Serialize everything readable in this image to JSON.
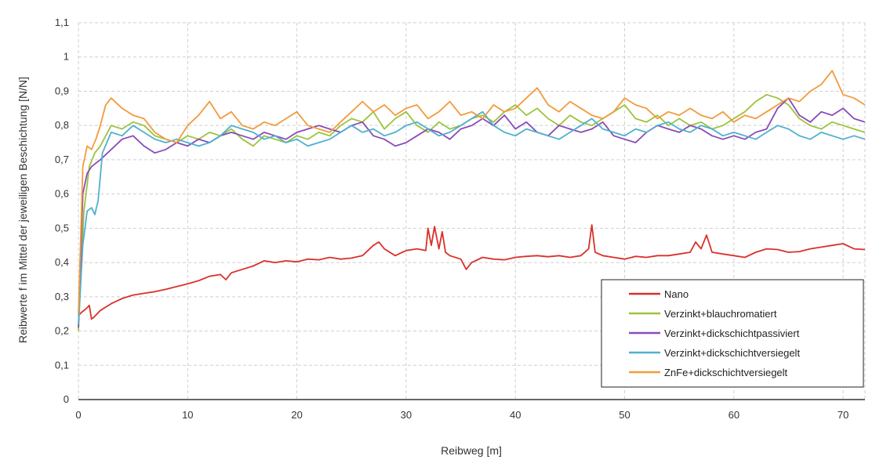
{
  "chart_data": {
    "type": "line",
    "xlabel": "Reibweg [m]",
    "ylabel": "Reibwerte f im Mittel der jeweiligen Beschichtung [N/N]",
    "xlim": [
      0,
      72
    ],
    "ylim": [
      0,
      1.1
    ],
    "x_ticks": [
      "0",
      "10",
      "20",
      "30",
      "40",
      "50",
      "60",
      "70"
    ],
    "x_tick_values": [
      0,
      10,
      20,
      30,
      40,
      50,
      60,
      70
    ],
    "y_ticks": [
      "0",
      "0,1",
      "0,2",
      "0,3",
      "0,4",
      "0,5",
      "0,6",
      "0,7",
      "0,8",
      "0,9",
      "1",
      "1,1"
    ],
    "y_tick_values": [
      0,
      0.1,
      0.2,
      0.3,
      0.4,
      0.5,
      0.6,
      0.7,
      0.8,
      0.9,
      1.0,
      1.1
    ],
    "grid": true,
    "legend_position": "bottom-right",
    "series": [
      {
        "name": "Nano",
        "color": "#d9312b",
        "x": [
          0,
          0.3,
          0.7,
          1.0,
          1.2,
          1.4,
          2,
          3,
          4,
          5,
          6,
          7,
          8,
          9,
          10,
          11,
          12,
          13,
          13.5,
          14,
          15,
          16,
          17,
          18,
          19,
          20,
          21,
          22,
          23,
          24,
          25,
          26,
          27,
          27.5,
          28,
          29,
          30,
          31,
          31.8,
          32,
          32.3,
          32.6,
          33,
          33.3,
          33.6,
          34,
          35,
          35.5,
          36,
          37,
          38,
          39,
          40,
          41,
          42,
          43,
          44,
          45,
          46,
          46.7,
          47,
          47.3,
          48,
          49,
          50,
          51,
          52,
          53,
          54,
          55,
          56,
          56.5,
          57,
          57.5,
          58,
          59,
          60,
          61,
          62,
          63,
          64,
          65,
          66,
          67,
          68,
          69,
          70,
          71,
          72
        ],
        "values": [
          0.245,
          0.255,
          0.265,
          0.275,
          0.235,
          0.24,
          0.26,
          0.28,
          0.295,
          0.305,
          0.31,
          0.315,
          0.322,
          0.33,
          0.338,
          0.347,
          0.36,
          0.365,
          0.35,
          0.37,
          0.38,
          0.39,
          0.405,
          0.4,
          0.405,
          0.402,
          0.41,
          0.408,
          0.415,
          0.41,
          0.413,
          0.42,
          0.45,
          0.46,
          0.44,
          0.42,
          0.435,
          0.44,
          0.435,
          0.5,
          0.45,
          0.505,
          0.44,
          0.49,
          0.43,
          0.42,
          0.41,
          0.38,
          0.4,
          0.415,
          0.41,
          0.408,
          0.415,
          0.418,
          0.42,
          0.417,
          0.42,
          0.415,
          0.42,
          0.44,
          0.51,
          0.43,
          0.42,
          0.415,
          0.41,
          0.418,
          0.415,
          0.42,
          0.42,
          0.425,
          0.43,
          0.46,
          0.44,
          0.48,
          0.43,
          0.425,
          0.42,
          0.415,
          0.43,
          0.44,
          0.438,
          0.43,
          0.432,
          0.44,
          0.445,
          0.45,
          0.455,
          0.44,
          0.438
        ]
      },
      {
        "name": "Verzinkt+blauchromatiert",
        "color": "#9bc43c",
        "x": [
          0,
          0.5,
          1,
          1.5,
          2,
          3,
          4,
          5,
          6,
          7,
          8,
          9,
          10,
          11,
          12,
          13,
          14,
          15,
          16,
          17,
          18,
          19,
          20,
          21,
          22,
          23,
          24,
          25,
          26,
          27,
          28,
          29,
          30,
          31,
          32,
          33,
          34,
          35,
          36,
          37,
          38,
          39,
          40,
          41,
          42,
          43,
          44,
          45,
          46,
          47,
          48,
          49,
          50,
          51,
          52,
          53,
          54,
          55,
          56,
          57,
          58,
          59,
          60,
          61,
          62,
          63,
          64,
          65,
          66,
          67,
          68,
          69,
          70,
          71,
          72
        ],
        "values": [
          0.2,
          0.55,
          0.68,
          0.72,
          0.74,
          0.8,
          0.79,
          0.81,
          0.8,
          0.77,
          0.76,
          0.75,
          0.77,
          0.76,
          0.78,
          0.77,
          0.79,
          0.76,
          0.74,
          0.77,
          0.76,
          0.75,
          0.77,
          0.76,
          0.78,
          0.77,
          0.8,
          0.82,
          0.81,
          0.84,
          0.79,
          0.82,
          0.84,
          0.8,
          0.78,
          0.81,
          0.79,
          0.8,
          0.82,
          0.83,
          0.81,
          0.84,
          0.86,
          0.83,
          0.85,
          0.82,
          0.8,
          0.83,
          0.81,
          0.8,
          0.82,
          0.84,
          0.86,
          0.82,
          0.81,
          0.83,
          0.8,
          0.82,
          0.8,
          0.81,
          0.79,
          0.8,
          0.82,
          0.84,
          0.87,
          0.89,
          0.88,
          0.86,
          0.82,
          0.8,
          0.79,
          0.81,
          0.8,
          0.79,
          0.78
        ]
      },
      {
        "name": "Verzinkt+dickschichtpassiviert",
        "color": "#8a4ab8",
        "x": [
          0,
          0.4,
          0.8,
          1.2,
          1.6,
          2,
          3,
          4,
          5,
          6,
          7,
          8,
          9,
          10,
          11,
          12,
          13,
          14,
          15,
          16,
          17,
          18,
          19,
          20,
          21,
          22,
          23,
          24,
          25,
          26,
          27,
          28,
          29,
          30,
          31,
          32,
          33,
          34,
          35,
          36,
          37,
          38,
          39,
          40,
          41,
          42,
          43,
          44,
          45,
          46,
          47,
          48,
          49,
          50,
          51,
          52,
          53,
          54,
          55,
          56,
          57,
          58,
          59,
          60,
          61,
          62,
          63,
          64,
          65,
          66,
          67,
          68,
          69,
          70,
          71,
          72
        ],
        "values": [
          0.21,
          0.6,
          0.66,
          0.68,
          0.69,
          0.7,
          0.73,
          0.76,
          0.77,
          0.74,
          0.72,
          0.73,
          0.75,
          0.74,
          0.76,
          0.75,
          0.77,
          0.78,
          0.77,
          0.76,
          0.78,
          0.77,
          0.76,
          0.78,
          0.79,
          0.8,
          0.79,
          0.78,
          0.8,
          0.81,
          0.77,
          0.76,
          0.74,
          0.75,
          0.77,
          0.79,
          0.78,
          0.76,
          0.79,
          0.8,
          0.82,
          0.8,
          0.83,
          0.79,
          0.81,
          0.78,
          0.77,
          0.8,
          0.79,
          0.78,
          0.79,
          0.81,
          0.77,
          0.76,
          0.75,
          0.78,
          0.8,
          0.79,
          0.78,
          0.8,
          0.79,
          0.77,
          0.76,
          0.77,
          0.76,
          0.78,
          0.79,
          0.85,
          0.88,
          0.83,
          0.81,
          0.84,
          0.83,
          0.85,
          0.82,
          0.81
        ]
      },
      {
        "name": "Verzinkt+dickschichtversiegelt",
        "color": "#4fb0cf",
        "x": [
          0,
          0.4,
          0.8,
          1.2,
          1.5,
          1.8,
          2.2,
          3,
          4,
          5,
          6,
          7,
          8,
          9,
          10,
          11,
          12,
          13,
          14,
          15,
          16,
          17,
          18,
          19,
          20,
          21,
          22,
          23,
          24,
          25,
          26,
          27,
          28,
          29,
          30,
          31,
          32,
          33,
          34,
          35,
          36,
          37,
          38,
          39,
          40,
          41,
          42,
          43,
          44,
          45,
          46,
          47,
          48,
          49,
          50,
          51,
          52,
          53,
          54,
          55,
          56,
          57,
          58,
          59,
          60,
          61,
          62,
          63,
          64,
          65,
          66,
          67,
          68,
          69,
          70,
          71,
          72
        ],
        "values": [
          0.22,
          0.45,
          0.55,
          0.56,
          0.54,
          0.58,
          0.72,
          0.78,
          0.77,
          0.8,
          0.78,
          0.76,
          0.75,
          0.76,
          0.75,
          0.74,
          0.75,
          0.77,
          0.8,
          0.79,
          0.78,
          0.76,
          0.77,
          0.75,
          0.76,
          0.74,
          0.75,
          0.76,
          0.78,
          0.8,
          0.78,
          0.79,
          0.77,
          0.78,
          0.8,
          0.81,
          0.79,
          0.77,
          0.78,
          0.8,
          0.82,
          0.84,
          0.8,
          0.78,
          0.77,
          0.79,
          0.78,
          0.77,
          0.76,
          0.78,
          0.8,
          0.82,
          0.79,
          0.78,
          0.77,
          0.79,
          0.78,
          0.8,
          0.81,
          0.79,
          0.78,
          0.8,
          0.79,
          0.77,
          0.78,
          0.77,
          0.76,
          0.78,
          0.8,
          0.79,
          0.77,
          0.76,
          0.78,
          0.77,
          0.76,
          0.77,
          0.76
        ]
      },
      {
        "name": "ZnFe+dickschichtversiegelt",
        "color": "#f39a3c",
        "x": [
          0,
          0.4,
          0.8,
          1.2,
          1.6,
          2,
          2.5,
          3,
          4,
          5,
          6,
          7,
          8,
          9,
          10,
          11,
          12,
          13,
          14,
          15,
          16,
          17,
          18,
          19,
          20,
          21,
          22,
          23,
          24,
          25,
          26,
          27,
          28,
          29,
          30,
          31,
          32,
          33,
          34,
          35,
          36,
          37,
          38,
          39,
          40,
          41,
          42,
          43,
          44,
          45,
          46,
          47,
          48,
          49,
          50,
          51,
          52,
          53,
          54,
          55,
          56,
          57,
          58,
          59,
          60,
          61,
          62,
          63,
          64,
          65,
          66,
          67,
          68,
          69,
          70,
          71,
          72
        ],
        "values": [
          0.25,
          0.68,
          0.74,
          0.73,
          0.76,
          0.8,
          0.86,
          0.88,
          0.85,
          0.83,
          0.82,
          0.78,
          0.76,
          0.75,
          0.8,
          0.83,
          0.87,
          0.82,
          0.84,
          0.8,
          0.79,
          0.81,
          0.8,
          0.82,
          0.84,
          0.8,
          0.79,
          0.78,
          0.81,
          0.84,
          0.87,
          0.84,
          0.86,
          0.83,
          0.85,
          0.86,
          0.82,
          0.84,
          0.87,
          0.83,
          0.84,
          0.82,
          0.86,
          0.84,
          0.85,
          0.88,
          0.91,
          0.86,
          0.84,
          0.87,
          0.85,
          0.83,
          0.82,
          0.84,
          0.88,
          0.86,
          0.85,
          0.82,
          0.84,
          0.83,
          0.85,
          0.83,
          0.82,
          0.84,
          0.81,
          0.83,
          0.82,
          0.84,
          0.86,
          0.88,
          0.87,
          0.9,
          0.92,
          0.96,
          0.89,
          0.88,
          0.86
        ]
      }
    ]
  }
}
